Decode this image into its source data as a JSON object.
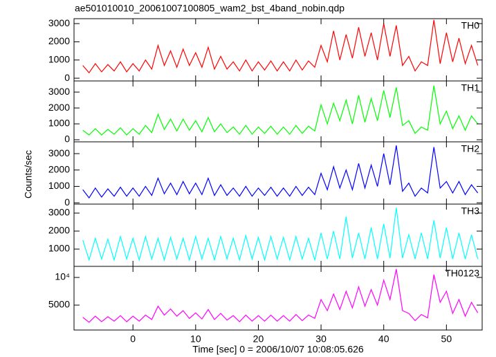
{
  "chart_data": [
    {
      "type": "line",
      "title": "ae501010010_20061007100805_wam2_bst_4band_nobin.qdp",
      "ylabel": "Counts/sec",
      "x": [
        -8,
        -7,
        -6,
        -5,
        -4,
        -3,
        -2,
        -1,
        0,
        1,
        2,
        3,
        4,
        5,
        6,
        7,
        8,
        9,
        10,
        11,
        12,
        13,
        14,
        15,
        16,
        17,
        18,
        19,
        20,
        21,
        22,
        23,
        24,
        25,
        26,
        27,
        28,
        29,
        30,
        31,
        32,
        33,
        34,
        35,
        36,
        37,
        38,
        39,
        40,
        41,
        42,
        43,
        44,
        45,
        46,
        47,
        48,
        49,
        50,
        51,
        52,
        53,
        54,
        55
      ],
      "series": [
        {
          "name": "TH0",
          "color": "#ff0000",
          "values": [
            700,
            300,
            800,
            350,
            750,
            400,
            900,
            350,
            800,
            400,
            1000,
            500,
            1800,
            700,
            1500,
            600,
            1600,
            700,
            1400,
            600,
            1700,
            500,
            1200,
            500,
            900,
            400,
            1000,
            400,
            900,
            450,
            950,
            400,
            900,
            400,
            1000,
            450,
            950,
            600,
            1800,
            900,
            2600,
            1000,
            2400,
            1100,
            2800,
            1200,
            2500,
            1000,
            3000,
            1200,
            2900,
            700,
            1200,
            400,
            900,
            700,
            3200,
            800,
            2500,
            900,
            2200,
            800,
            1800,
            700
          ]
        }
      ],
      "ylim": [
        -150,
        3270
      ],
      "yticks": [
        0,
        1000,
        2000,
        3000
      ]
    },
    {
      "type": "line",
      "x": [
        -8,
        -7,
        -6,
        -5,
        -4,
        -3,
        -2,
        -1,
        0,
        1,
        2,
        3,
        4,
        5,
        6,
        7,
        8,
        9,
        10,
        11,
        12,
        13,
        14,
        15,
        16,
        17,
        18,
        19,
        20,
        21,
        22,
        23,
        24,
        25,
        26,
        27,
        28,
        29,
        30,
        31,
        32,
        33,
        34,
        35,
        36,
        37,
        38,
        39,
        40,
        41,
        42,
        43,
        44,
        45,
        46,
        47,
        48,
        49,
        50,
        51,
        52,
        53,
        54,
        55
      ],
      "series": [
        {
          "name": "TH1",
          "color": "#00ff00",
          "values": [
            600,
            300,
            700,
            300,
            650,
            350,
            750,
            300,
            700,
            350,
            900,
            450,
            1600,
            650,
            1300,
            550,
            1300,
            600,
            1200,
            500,
            1400,
            500,
            1000,
            450,
            800,
            350,
            900,
            350,
            800,
            400,
            850,
            350,
            800,
            350,
            900,
            400,
            850,
            550,
            2200,
            1000,
            2300,
            1200,
            2500,
            1000,
            2800,
            1100,
            2600,
            1200,
            3100,
            1400,
            3300,
            900,
            1200,
            400,
            800,
            600,
            3400,
            1000,
            1800,
            700,
            1500,
            600,
            1500,
            1000
          ]
        }
      ],
      "ylim": [
        -130,
        3700
      ],
      "yticks": [
        0,
        1000,
        2000,
        3000
      ]
    },
    {
      "type": "line",
      "x": [
        -8,
        -7,
        -6,
        -5,
        -4,
        -3,
        -2,
        -1,
        0,
        1,
        2,
        3,
        4,
        5,
        6,
        7,
        8,
        9,
        10,
        11,
        12,
        13,
        14,
        15,
        16,
        17,
        18,
        19,
        20,
        21,
        22,
        23,
        24,
        25,
        26,
        27,
        28,
        29,
        30,
        31,
        32,
        33,
        34,
        35,
        36,
        37,
        38,
        39,
        40,
        41,
        42,
        43,
        44,
        45,
        46,
        47,
        48,
        49,
        50,
        51,
        52,
        53,
        54,
        55
      ],
      "series": [
        {
          "name": "TH2",
          "color": "#0000ff",
          "values": [
            800,
            300,
            900,
            350,
            850,
            400,
            950,
            400,
            900,
            400,
            1000,
            450,
            1500,
            550,
            1200,
            500,
            1300,
            550,
            1200,
            500,
            1500,
            450,
            1100,
            450,
            900,
            400,
            1000,
            400,
            900,
            450,
            950,
            400,
            900,
            400,
            1000,
            450,
            950,
            500,
            1800,
            800,
            2200,
            900,
            2000,
            800,
            2400,
            900,
            2300,
            1000,
            3000,
            1100,
            3500,
            700,
            1200,
            400,
            900,
            600,
            3400,
            900,
            1300,
            600,
            1300,
            500,
            1100,
            600
          ]
        }
      ],
      "ylim": [
        -80,
        3720
      ],
      "yticks": [
        0,
        1000,
        2000,
        3000
      ]
    },
    {
      "type": "line",
      "x": [
        -8,
        -7,
        -6,
        -5,
        -4,
        -3,
        -2,
        -1,
        0,
        1,
        2,
        3,
        4,
        5,
        6,
        7,
        8,
        9,
        10,
        11,
        12,
        13,
        14,
        15,
        16,
        17,
        18,
        19,
        20,
        21,
        22,
        23,
        24,
        25,
        26,
        27,
        28,
        29,
        30,
        31,
        32,
        33,
        34,
        35,
        36,
        37,
        38,
        39,
        40,
        41,
        42,
        43,
        44,
        45,
        46,
        47,
        48,
        49,
        50,
        51,
        52,
        53,
        54,
        55
      ],
      "series": [
        {
          "name": "TH3",
          "color": "#00ffff",
          "values": [
            1500,
            400,
            1600,
            450,
            1550,
            400,
            1700,
            450,
            1600,
            400,
            1700,
            450,
            1600,
            400,
            1650,
            450,
            1600,
            400,
            1700,
            450,
            1600,
            400,
            1700,
            450,
            1600,
            400,
            1750,
            450,
            1650,
            400,
            1700,
            450,
            1650,
            400,
            1700,
            450,
            1600,
            400,
            1900,
            450,
            2000,
            450,
            2800,
            500,
            1900,
            450,
            2200,
            450,
            2400,
            500,
            3300,
            500,
            1800,
            450,
            1900,
            450,
            2600,
            500,
            2200,
            450,
            1900,
            450,
            1800,
            450
          ]
        }
      ],
      "ylim": [
        40,
        3500
      ],
      "yticks": [
        1000,
        2000,
        3000
      ]
    },
    {
      "type": "line",
      "xlabel": "Time [sec] 0 = 2006/10/07 10:08:05.626",
      "x": [
        -8,
        -7,
        -6,
        -5,
        -4,
        -3,
        -2,
        -1,
        0,
        1,
        2,
        3,
        4,
        5,
        6,
        7,
        8,
        9,
        10,
        11,
        12,
        13,
        14,
        15,
        16,
        17,
        18,
        19,
        20,
        21,
        22,
        23,
        24,
        25,
        26,
        27,
        28,
        29,
        30,
        31,
        32,
        33,
        34,
        35,
        36,
        37,
        38,
        39,
        40,
        41,
        42,
        43,
        44,
        45,
        46,
        47,
        48,
        49,
        50,
        51,
        52,
        53,
        54,
        55
      ],
      "series": [
        {
          "name": "TH0123",
          "color": "#ff00ff",
          "values": [
            2800,
            1900,
            3000,
            2000,
            2900,
            2100,
            3100,
            2000,
            3000,
            2100,
            3200,
            2400,
            4800,
            3200,
            4300,
            3000,
            4000,
            2600,
            3600,
            2500,
            4200,
            2400,
            3500,
            2300,
            3100,
            2000,
            3200,
            2100,
            3100,
            2100,
            3200,
            2100,
            3100,
            2100,
            3300,
            2200,
            3200,
            2600,
            6000,
            4000,
            7000,
            4200,
            7500,
            4500,
            8300,
            4800,
            7800,
            5000,
            9500,
            6000,
            11500,
            4000,
            3500,
            2200,
            3300,
            2700,
            10500,
            5500,
            7500,
            3500,
            6000,
            3000,
            5500,
            3600
          ]
        }
      ],
      "ylim": [
        500,
        12000
      ],
      "yticks": [
        5000,
        {
          "value": 10000,
          "label": "10⁴"
        }
      ],
      "xlim": [
        -9.4,
        55.7
      ],
      "xticks": [
        0,
        10,
        20,
        30,
        40,
        50
      ]
    }
  ]
}
